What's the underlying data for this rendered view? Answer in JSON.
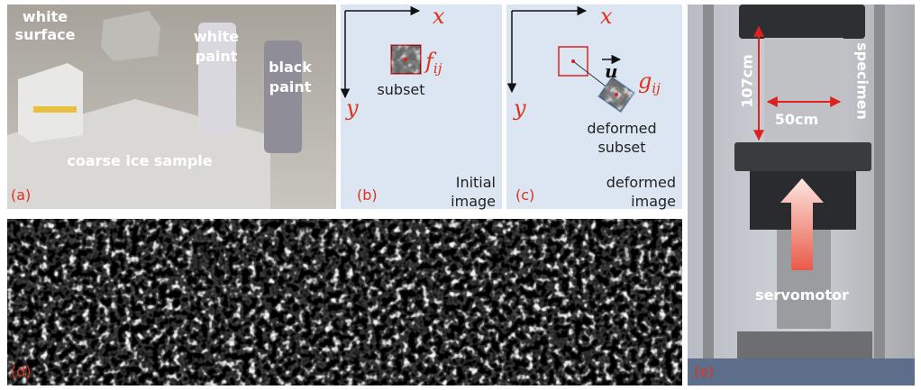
{
  "panel_a": {
    "label": "(a)",
    "white_surface": [
      "white",
      "surface"
    ],
    "white_paint": [
      "white",
      "paint"
    ],
    "black_paint": [
      "black",
      "paint"
    ],
    "sample": "coarse ice sample"
  },
  "panel_b": {
    "label": "(b)",
    "x_axis": "x",
    "y_axis": "y",
    "subset": "subset",
    "subset_symbol": "f",
    "subset_subscript": "ij",
    "caption": [
      "Initial",
      "image"
    ]
  },
  "panel_c": {
    "label": "(c)",
    "x_axis": "x",
    "y_axis": "y",
    "displacement": "u",
    "deformed_symbol": "g",
    "deformed_subscript": "ij",
    "deformed_subset": [
      "deformed",
      "subset"
    ],
    "caption": [
      "deformed",
      "image"
    ]
  },
  "panel_d": {
    "label": "(d)"
  },
  "panel_e": {
    "label": "(e)",
    "height": "107cm",
    "width": "50cm",
    "specimen": "specimen",
    "actuator": "servomotor"
  }
}
